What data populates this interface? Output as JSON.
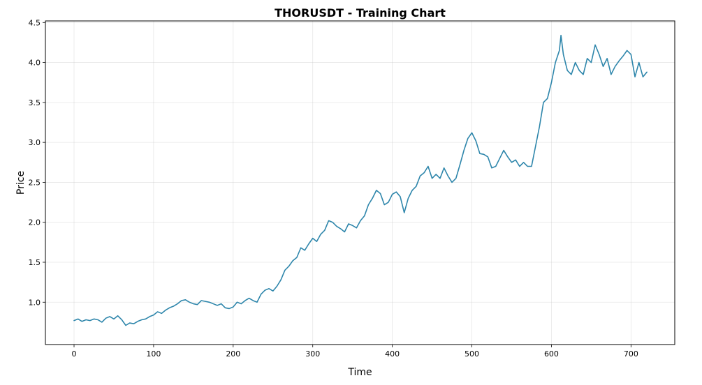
{
  "chart_data": {
    "type": "line",
    "title": "THORUSDT - Training Chart",
    "xlabel": "Time",
    "ylabel": "Price",
    "xlim": [
      -36,
      755
    ],
    "ylim": [
      0.47,
      4.52
    ],
    "x_ticks": [
      0,
      100,
      200,
      300,
      400,
      500,
      600,
      700
    ],
    "y_ticks": [
      1.0,
      1.5,
      2.0,
      2.5,
      3.0,
      3.5,
      4.0,
      4.5
    ],
    "x_tick_labels": [
      "0",
      "100",
      "200",
      "300",
      "400",
      "500",
      "600",
      "700"
    ],
    "y_tick_labels": [
      "1.0",
      "1.5",
      "2.0",
      "2.5",
      "3.0",
      "3.5",
      "4.0",
      "4.5"
    ],
    "grid": true,
    "legend": "none",
    "line_color": "#2e86ab",
    "series": [
      {
        "x": [
          0,
          5,
          10,
          15,
          20,
          25,
          30,
          35,
          40,
          45,
          50,
          55,
          60,
          65,
          70,
          75,
          80,
          85,
          90,
          95,
          100,
          105,
          110,
          115,
          120,
          125,
          130,
          135,
          140,
          145,
          150,
          155,
          160,
          165,
          170,
          175,
          180,
          185,
          190,
          195,
          200,
          205,
          210,
          215,
          220,
          225,
          230,
          235,
          240,
          245,
          250,
          255,
          260,
          265,
          270,
          275,
          280,
          285,
          290,
          295,
          300,
          305,
          310,
          315,
          320,
          325,
          330,
          335,
          340,
          345,
          350,
          355,
          360,
          365,
          370,
          375,
          380,
          385,
          390,
          395,
          400,
          405,
          410,
          415,
          420,
          425,
          430,
          435,
          440,
          445,
          450,
          455,
          460,
          465,
          470,
          475,
          480,
          485,
          490,
          495,
          500,
          505,
          510,
          515,
          520,
          525,
          530,
          535,
          540,
          545,
          550,
          555,
          560,
          565,
          570,
          575,
          580,
          585,
          590,
          595,
          600,
          605,
          610,
          612,
          615,
          620,
          625,
          630,
          635,
          640,
          645,
          650,
          655,
          660,
          665,
          670,
          675,
          680,
          685,
          690,
          695,
          700,
          705,
          710,
          715,
          720
        ],
        "values": [
          0.77,
          0.79,
          0.76,
          0.78,
          0.77,
          0.79,
          0.78,
          0.75,
          0.8,
          0.82,
          0.79,
          0.83,
          0.78,
          0.71,
          0.74,
          0.73,
          0.76,
          0.78,
          0.79,
          0.82,
          0.84,
          0.88,
          0.86,
          0.9,
          0.93,
          0.95,
          0.98,
          1.02,
          1.03,
          1.0,
          0.98,
          0.97,
          1.02,
          1.01,
          1.0,
          0.98,
          0.96,
          0.98,
          0.93,
          0.92,
          0.94,
          1.0,
          0.98,
          1.02,
          1.05,
          1.02,
          1.0,
          1.1,
          1.15,
          1.17,
          1.14,
          1.2,
          1.28,
          1.4,
          1.45,
          1.52,
          1.56,
          1.68,
          1.65,
          1.73,
          1.8,
          1.76,
          1.85,
          1.9,
          2.02,
          2.0,
          1.95,
          1.92,
          1.88,
          1.98,
          1.96,
          1.93,
          2.02,
          2.08,
          2.22,
          2.3,
          2.4,
          2.36,
          2.22,
          2.25,
          2.35,
          2.38,
          2.32,
          2.12,
          2.3,
          2.4,
          2.45,
          2.58,
          2.62,
          2.7,
          2.55,
          2.6,
          2.55,
          2.68,
          2.58,
          2.5,
          2.55,
          2.72,
          2.9,
          3.05,
          3.12,
          3.02,
          2.86,
          2.85,
          2.82,
          2.68,
          2.7,
          2.8,
          2.9,
          2.82,
          2.75,
          2.78,
          2.7,
          2.75,
          2.7,
          2.7,
          2.95,
          3.2,
          3.5,
          3.55,
          3.75,
          4.0,
          4.15,
          4.34,
          4.1,
          3.9,
          3.85,
          4.0,
          3.9,
          3.85,
          4.05,
          4.0,
          4.22,
          4.1,
          3.95,
          4.05,
          3.85,
          3.95,
          4.02,
          4.08,
          4.15,
          4.1,
          3.82,
          4.0,
          3.82,
          3.88
        ]
      }
    ]
  }
}
